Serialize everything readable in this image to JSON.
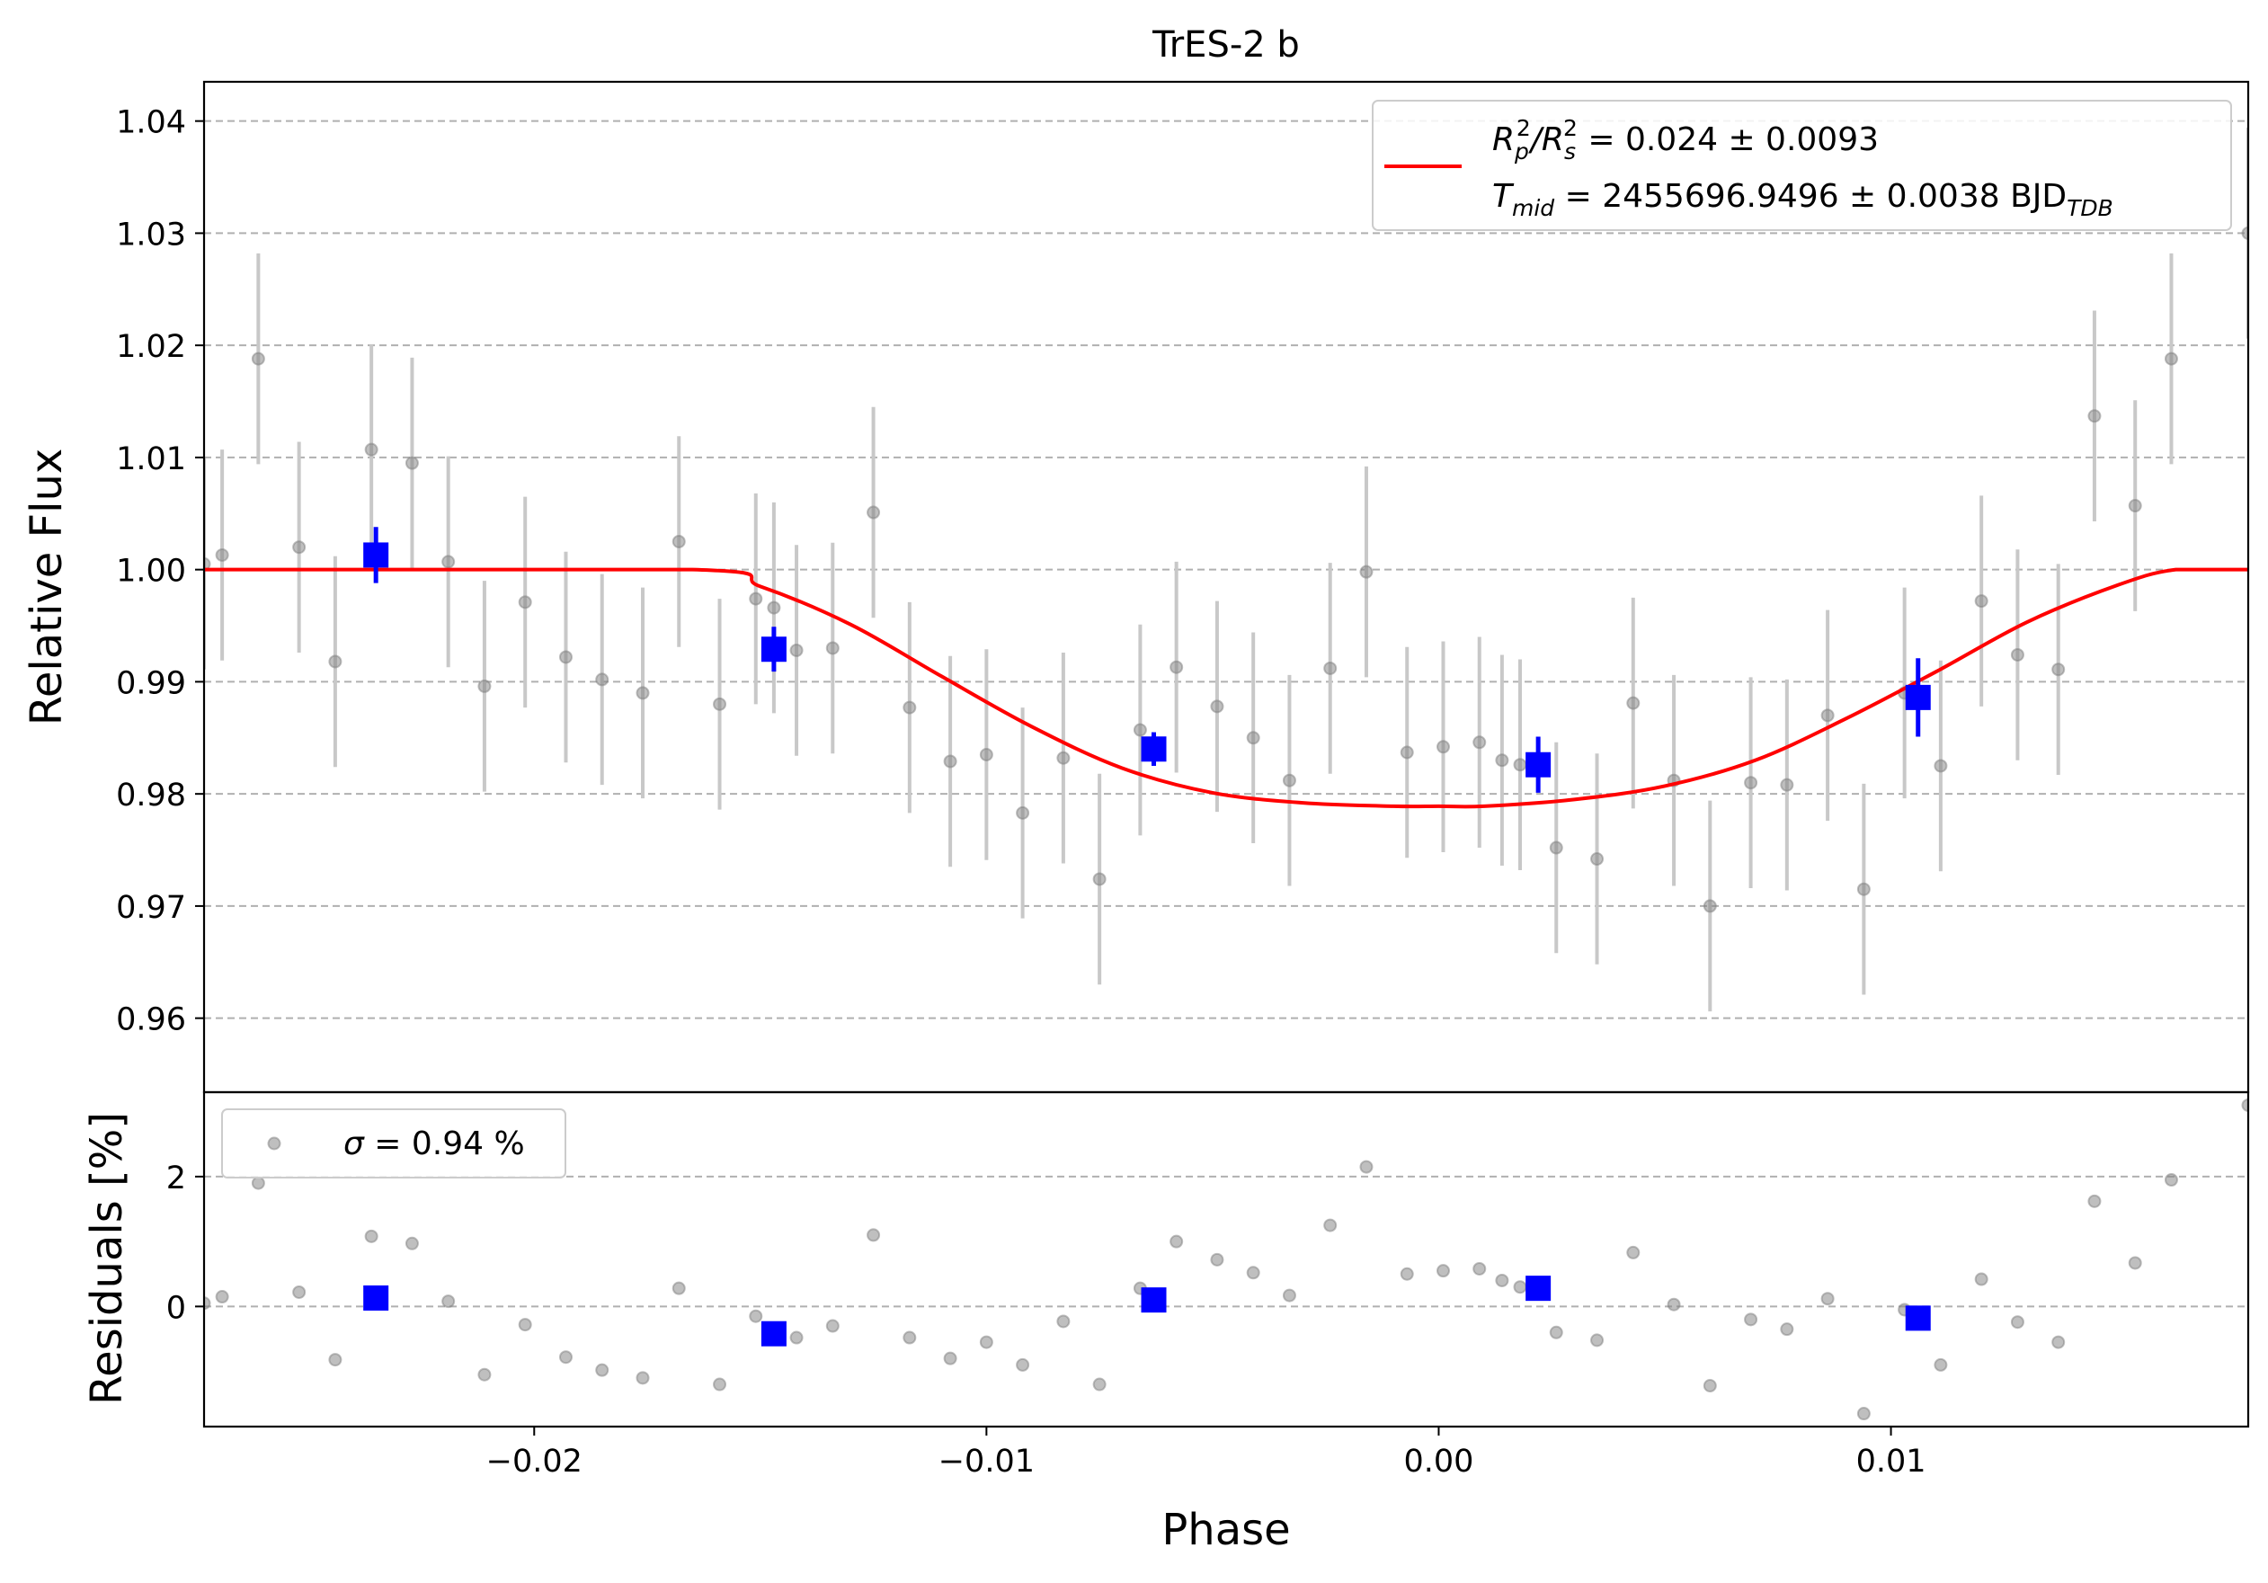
{
  "chart_data": [
    {
      "type": "scatter",
      "title": "TrES-2 b",
      "xlabel": "Phase",
      "ylabel": "Relative Flux",
      "xlim": [
        -0.0273,
        0.0179
      ],
      "ylim": [
        0.9534,
        1.0435
      ],
      "xticks": [
        -0.02,
        -0.01,
        0.0,
        0.01
      ],
      "xtick_labels": [
        "−0.02",
        "−0.01",
        "0.00",
        "0.01"
      ],
      "yticks": [
        0.96,
        0.97,
        0.98,
        0.99,
        1.0,
        1.01,
        1.02,
        1.03,
        1.04
      ],
      "ytick_labels": [
        "0.96",
        "0.97",
        "0.98",
        "0.99",
        "1.00",
        "1.01",
        "1.02",
        "1.03",
        "1.04"
      ],
      "grid": "horizontal dashed",
      "legend_position": "upper right",
      "legend": {
        "line1": {
          "pre": "R",
          "sub1": "p",
          "sup1": "2",
          "mid": "/R",
          "sub2": "s",
          "sup2": "2",
          "post": " = 0.024 ± 0.0093"
        },
        "line2": {
          "pre": "T",
          "sub1": "mid",
          "mid": " = 2455696.9496 ± 0.0038 BJD",
          "sub2": "TDB"
        }
      },
      "colors": {
        "raw": "#808080",
        "errorbar": "#c8c8c8",
        "binned": "#0000ff",
        "model": "#ff0000",
        "grid": "#b0b0b0"
      },
      "raw": {
        "x": [
          -0.0273,
          -0.0269,
          -0.0261,
          -0.0252,
          -0.0244,
          -0.0236,
          -0.0227,
          -0.0219,
          -0.0211,
          -0.0202,
          -0.0193,
          -0.0185,
          -0.0176,
          -0.0168,
          -0.0159,
          -0.0151,
          -0.0147,
          -0.0142,
          -0.0134,
          -0.0125,
          -0.0117,
          -0.0108,
          -0.01,
          -0.0092,
          -0.0083,
          -0.0075,
          -0.0066,
          -0.0058,
          -0.0049,
          -0.0041,
          -0.0033,
          -0.0024,
          -0.0016,
          -0.0007,
          0.0001,
          0.0009,
          0.0014,
          0.0018,
          0.0026,
          0.0035,
          0.0043,
          0.0052,
          0.006,
          0.0069,
          0.0077,
          0.0086,
          0.0094,
          0.0103,
          0.0111,
          0.012,
          0.0128,
          0.0137,
          0.0145,
          0.0154,
          0.0162,
          0.0179
        ],
        "y": [
          1.0005,
          1.0013,
          1.0188,
          1.002,
          0.9918,
          1.0107,
          1.0095,
          1.0007,
          0.9896,
          0.9971,
          0.9922,
          0.9902,
          0.989,
          1.0025,
          0.988,
          0.9974,
          0.9966,
          0.9928,
          0.993,
          1.0051,
          0.9877,
          0.9829,
          0.9835,
          0.9783,
          0.9832,
          0.9724,
          0.9857,
          0.9913,
          0.9878,
          0.985,
          0.9812,
          0.9912,
          0.9998,
          0.9837,
          0.9842,
          0.9846,
          0.983,
          0.9826,
          0.9752,
          0.9742,
          0.9881,
          0.9812,
          0.97,
          0.981,
          0.9808,
          0.987,
          0.9715,
          0.989,
          0.9825,
          0.9972,
          0.9924,
          0.9911,
          1.0137,
          1.0057,
          1.0188,
          1.03
        ],
        "yerr": 0.0094
      },
      "binned": {
        "x": [
          -0.0235,
          -0.0147,
          -0.0063,
          0.0022,
          0.0106
        ],
        "y": [
          1.0013,
          0.9929,
          0.984,
          0.9826,
          0.9886
        ],
        "yerr": [
          0.0025,
          0.002,
          0.0015,
          0.0025,
          0.0035
        ]
      },
      "model": {
        "x": [
          -0.0273,
          -0.0165,
          -0.015,
          -0.013,
          -0.011,
          -0.009,
          -0.007,
          -0.005,
          -0.003,
          -0.001,
          0.0,
          0.001,
          0.003,
          0.005,
          0.007,
          0.009,
          0.011,
          0.013,
          0.015,
          0.0163,
          0.0179
        ],
        "y": [
          1.0,
          1.0,
          0.9985,
          0.9951,
          0.9905,
          0.986,
          0.9823,
          0.9801,
          0.9792,
          0.9789,
          0.9789,
          0.9789,
          0.9795,
          0.9807,
          0.983,
          0.9867,
          0.9909,
          0.9953,
          0.9986,
          1.0,
          1.0
        ]
      }
    },
    {
      "type": "scatter",
      "xlabel": "Phase",
      "ylabel": "Residuals [%]",
      "xlim": [
        -0.0273,
        0.0179
      ],
      "ylim": [
        -1.85,
        3.3
      ],
      "yticks": [
        0,
        2
      ],
      "ytick_labels": [
        "0",
        "2"
      ],
      "grid": "horizontal dashed",
      "legend_position": "upper left",
      "legend": {
        "sigma_label": "σ",
        "sigma_text": " = 0.94 %"
      },
      "raw": {
        "x": [
          -0.0273,
          -0.0269,
          -0.0261,
          -0.0252,
          -0.0244,
          -0.0236,
          -0.0227,
          -0.0219,
          -0.0211,
          -0.0202,
          -0.0193,
          -0.0185,
          -0.0176,
          -0.0168,
          -0.0159,
          -0.0151,
          -0.0147,
          -0.0142,
          -0.0134,
          -0.0125,
          -0.0117,
          -0.0108,
          -0.01,
          -0.0092,
          -0.0083,
          -0.0075,
          -0.0066,
          -0.0058,
          -0.0049,
          -0.0041,
          -0.0033,
          -0.0024,
          -0.0016,
          -0.0007,
          0.0001,
          0.0009,
          0.0014,
          0.0018,
          0.0026,
          0.0035,
          0.0043,
          0.0052,
          0.006,
          0.0069,
          0.0077,
          0.0086,
          0.0094,
          0.0103,
          0.0111,
          0.012,
          0.0128,
          0.0137,
          0.0145,
          0.0154,
          0.0162,
          0.0179
        ],
        "y": [
          0.05,
          0.15,
          1.9,
          0.22,
          -0.82,
          1.08,
          0.97,
          0.08,
          -1.05,
          -0.28,
          -0.78,
          -0.98,
          -1.1,
          0.28,
          -1.2,
          -0.15,
          -0.43,
          -0.48,
          -0.3,
          1.1,
          -0.48,
          -0.8,
          -0.55,
          -0.9,
          -0.23,
          -1.2,
          0.28,
          1.0,
          0.72,
          0.52,
          0.17,
          1.25,
          2.15,
          0.5,
          0.55,
          0.58,
          0.4,
          0.3,
          -0.4,
          -0.52,
          0.83,
          0.03,
          -1.22,
          -0.2,
          -0.35,
          0.12,
          -1.65,
          -0.05,
          -0.9,
          0.42,
          -0.24,
          -0.55,
          1.62,
          0.67,
          1.95,
          3.1
        ]
      },
      "binned": {
        "x": [
          -0.0235,
          -0.0147,
          -0.0063,
          0.0022,
          0.0106
        ],
        "y": [
          0.13,
          -0.42,
          0.1,
          0.28,
          -0.18
        ]
      }
    }
  ]
}
